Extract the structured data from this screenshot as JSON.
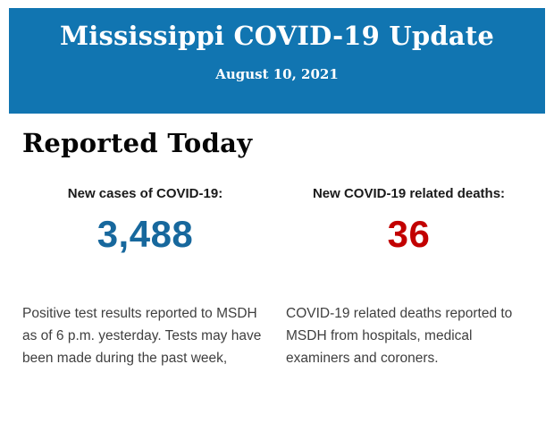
{
  "header": {
    "title": "Mississippi COVID-19 Update",
    "date": "August 10, 2021",
    "background_color": "#1175b1",
    "text_color": "#ffffff"
  },
  "section": {
    "heading": "Reported Today"
  },
  "stats": [
    {
      "label": "New cases of COVID-19:",
      "value": "3,488",
      "value_color": "#17689d",
      "description": "Positive test results reported to MSDH as of 6 p.m. yesterday. Tests may have been made during the past week,"
    },
    {
      "label": "New COVID-19 related deaths:",
      "value": "36",
      "value_color": "#c20000",
      "description": "COVID-19 related deaths reported to MSDH from hospitals, medical examiners and coroners."
    }
  ]
}
